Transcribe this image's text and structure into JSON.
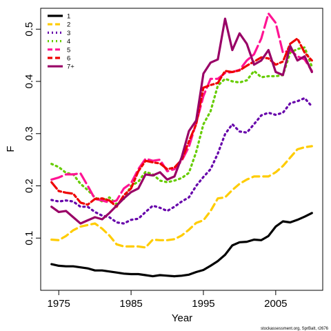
{
  "chart_data": {
    "type": "line",
    "xlabel": "Year",
    "ylabel": "F",
    "xlim": [
      1972.5,
      2011.5
    ],
    "ylim": [
      0.0,
      0.54
    ],
    "x_ticks": [
      1975,
      1985,
      1995,
      2005
    ],
    "y_ticks": [
      0.1,
      0.2,
      0.3,
      0.4,
      0.5
    ],
    "legend_position": "top-left",
    "footnote": "stockassessment.org, SprBalt, r2676",
    "x": [
      1974,
      1975,
      1976,
      1977,
      1978,
      1979,
      1980,
      1981,
      1982,
      1983,
      1984,
      1985,
      1986,
      1987,
      1988,
      1989,
      1990,
      1991,
      1992,
      1993,
      1994,
      1995,
      1996,
      1997,
      1998,
      1999,
      2000,
      2001,
      2002,
      2003,
      2004,
      2005,
      2006,
      2007,
      2008,
      2009,
      2010
    ],
    "series": [
      {
        "name": "1",
        "color": "#000000",
        "dash": "solid",
        "values": [
          0.05,
          0.047,
          0.046,
          0.046,
          0.044,
          0.042,
          0.038,
          0.038,
          0.036,
          0.034,
          0.032,
          0.031,
          0.031,
          0.029,
          0.027,
          0.029,
          0.028,
          0.027,
          0.028,
          0.03,
          0.035,
          0.039,
          0.047,
          0.056,
          0.068,
          0.086,
          0.092,
          0.093,
          0.097,
          0.096,
          0.104,
          0.122,
          0.132,
          0.13,
          0.135,
          0.141,
          0.148
        ]
      },
      {
        "name": "2",
        "color": "#FFCC00",
        "dash": "dashed",
        "values": [
          0.097,
          0.096,
          0.104,
          0.115,
          0.122,
          0.125,
          0.128,
          0.118,
          0.105,
          0.088,
          0.084,
          0.084,
          0.084,
          0.082,
          0.097,
          0.096,
          0.096,
          0.098,
          0.105,
          0.116,
          0.129,
          0.134,
          0.152,
          0.176,
          0.178,
          0.192,
          0.204,
          0.212,
          0.218,
          0.218,
          0.218,
          0.226,
          0.238,
          0.254,
          0.27,
          0.274,
          0.276
        ]
      },
      {
        "name": "3",
        "color": "#6600AA",
        "dash": "dotted",
        "values": [
          0.173,
          0.17,
          0.172,
          0.17,
          0.16,
          0.16,
          0.15,
          0.143,
          0.14,
          0.13,
          0.128,
          0.135,
          0.137,
          0.15,
          0.162,
          0.158,
          0.152,
          0.16,
          0.17,
          0.178,
          0.2,
          0.217,
          0.232,
          0.262,
          0.299,
          0.318,
          0.304,
          0.302,
          0.318,
          0.335,
          0.34,
          0.336,
          0.34,
          0.358,
          0.362,
          0.368,
          0.352
        ]
      },
      {
        "name": "4",
        "color": "#66CC00",
        "dash": "dotted",
        "values": [
          0.242,
          0.236,
          0.225,
          0.222,
          0.204,
          0.192,
          0.178,
          0.17,
          0.178,
          0.165,
          0.175,
          0.2,
          0.208,
          0.227,
          0.222,
          0.21,
          0.207,
          0.21,
          0.215,
          0.225,
          0.265,
          0.318,
          0.343,
          0.392,
          0.405,
          0.4,
          0.398,
          0.402,
          0.42,
          0.408,
          0.41,
          0.41,
          0.412,
          0.455,
          0.462,
          0.465,
          0.428
        ]
      },
      {
        "name": "5",
        "color": "#FF1493",
        "dash": "longdash",
        "values": [
          0.212,
          0.216,
          0.222,
          0.222,
          0.224,
          0.2,
          0.175,
          0.172,
          0.168,
          0.172,
          0.195,
          0.205,
          0.232,
          0.252,
          0.248,
          0.25,
          0.228,
          0.232,
          0.248,
          0.275,
          0.32,
          0.372,
          0.405,
          0.405,
          0.416,
          0.418,
          0.422,
          0.44,
          0.452,
          0.482,
          0.53,
          0.512,
          0.455,
          0.46,
          0.448,
          0.442,
          0.42
        ]
      },
      {
        "name": "6",
        "color": "#EE0000",
        "dash": "twodash",
        "values": [
          0.207,
          0.19,
          0.187,
          0.185,
          0.168,
          0.164,
          0.175,
          0.176,
          0.172,
          0.16,
          0.182,
          0.195,
          0.228,
          0.248,
          0.245,
          0.243,
          0.232,
          0.235,
          0.25,
          0.285,
          0.318,
          0.388,
          0.393,
          0.397,
          0.42,
          0.418,
          0.421,
          0.43,
          0.438,
          0.446,
          0.444,
          0.432,
          0.438,
          0.472,
          0.482,
          0.455,
          0.44
        ]
      },
      {
        "name": "7+",
        "color": "#990066",
        "dash": "solid",
        "values": [
          0.16,
          0.15,
          0.152,
          0.14,
          0.128,
          0.134,
          0.14,
          0.136,
          0.148,
          0.162,
          0.176,
          0.188,
          0.195,
          0.222,
          0.22,
          0.226,
          0.212,
          0.218,
          0.255,
          0.305,
          0.325,
          0.415,
          0.436,
          0.442,
          0.52,
          0.46,
          0.492,
          0.472,
          0.432,
          0.44,
          0.46,
          0.418,
          0.412,
          0.468,
          0.44,
          0.448,
          0.418
        ]
      }
    ]
  }
}
